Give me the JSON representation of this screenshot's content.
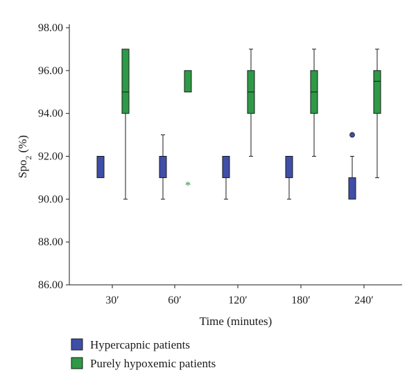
{
  "chart_data": {
    "type": "boxplot",
    "ylabel": "Spo2 (%)",
    "ylabel_main": "Spo",
    "ylabel_sub": "2",
    "ylabel_suffix": " (%)",
    "xlabel": "Time (minutes)",
    "ylim": [
      86,
      98
    ],
    "yticks": [
      86,
      88,
      90,
      92,
      94,
      96,
      98
    ],
    "ytick_labels": [
      "86.00",
      "88.00",
      "90.00",
      "92.00",
      "94.00",
      "96.00",
      "98.00"
    ],
    "categories": [
      "30′",
      "60′",
      "120′",
      "180′",
      "240′"
    ],
    "grid": false,
    "legend_position": "bottom-left",
    "series": [
      {
        "name": "Hypercapnic patients",
        "color": "#3f4fa8",
        "boxes": [
          {
            "min": null,
            "q1": 91,
            "median": 91,
            "q3": 92,
            "max": null,
            "outliers": []
          },
          {
            "min": 90,
            "q1": 91,
            "median": 91,
            "q3": 92,
            "max": 93,
            "outliers": []
          },
          {
            "min": 90,
            "q1": 91,
            "median": 91,
            "q3": 92,
            "max": null,
            "outliers": []
          },
          {
            "min": 90,
            "q1": 91,
            "median": 91,
            "q3": 92,
            "max": null,
            "outliers": []
          },
          {
            "min": null,
            "q1": 90,
            "median": 90,
            "q3": 91,
            "max": 92,
            "outliers": [
              93
            ]
          }
        ]
      },
      {
        "name": "Purely hypoxemic patients",
        "color": "#2e9a47",
        "boxes": [
          {
            "min": 90,
            "q1": 94,
            "median": 95,
            "q3": 97,
            "max": null,
            "outliers": []
          },
          {
            "min": null,
            "q1": 95,
            "median": 95,
            "q3": 96,
            "max": null,
            "outliers": [],
            "extremes": [
              90.75
            ]
          },
          {
            "min": 92,
            "q1": 94,
            "median": 95,
            "q3": 96,
            "max": 97,
            "outliers": []
          },
          {
            "min": 92,
            "q1": 94,
            "median": 95,
            "q3": 96,
            "max": 97,
            "outliers": []
          },
          {
            "min": 91,
            "q1": 94,
            "median": 95.5,
            "q3": 96,
            "max": 97,
            "outliers": []
          }
        ]
      }
    ]
  }
}
